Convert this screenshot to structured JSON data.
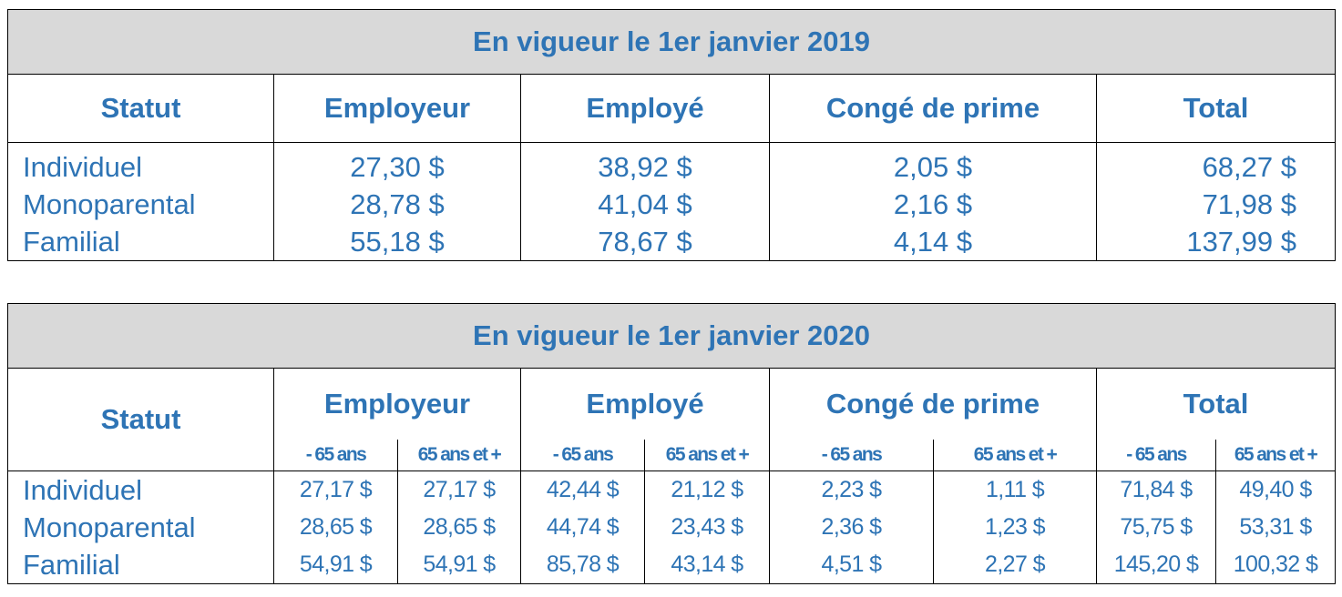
{
  "table_2019": {
    "title": "En vigueur le 1er janvier 2019",
    "headers": [
      "Statut",
      "Employeur",
      "Employé",
      "Congé de prime",
      "Total"
    ],
    "rows": [
      {
        "statut": "Individuel",
        "employeur": "27,30 $",
        "employe": "38,92 $",
        "conge": "2,05 $",
        "total": "68,27 $"
      },
      {
        "statut": "Monoparental",
        "employeur": "28,78 $",
        "employe": "41,04 $",
        "conge": "2,16 $",
        "total": "71,98 $"
      },
      {
        "statut": "Familial",
        "employeur": "55,18 $",
        "employe": "78,67 $",
        "conge": "4,14 $",
        "total": "137,99 $"
      }
    ]
  },
  "table_2020": {
    "title": "En vigueur le 1er janvier 2020",
    "headers": [
      "Statut",
      "Employeur",
      "Employé",
      "Congé de prime",
      "Total"
    ],
    "subheaders": [
      "- 65 ans",
      "65 ans et +"
    ],
    "rows": [
      {
        "statut": "Individuel",
        "values": [
          "27,17 $",
          "27,17 $",
          "42,44 $",
          "21,12 $",
          "2,23 $",
          "1,11 $",
          "71,84 $",
          "49,40 $"
        ]
      },
      {
        "statut": "Monoparental",
        "values": [
          "28,65 $",
          "28,65 $",
          "44,74 $",
          "23,43 $",
          "2,36 $",
          "1,23 $",
          "75,75 $",
          "53,31 $"
        ]
      },
      {
        "statut": "Familial",
        "values": [
          "54,91 $",
          "54,91 $",
          "85,78 $",
          "43,14 $",
          "4,51 $",
          "2,27 $",
          "145,20 $",
          "100,32 $"
        ]
      }
    ]
  }
}
